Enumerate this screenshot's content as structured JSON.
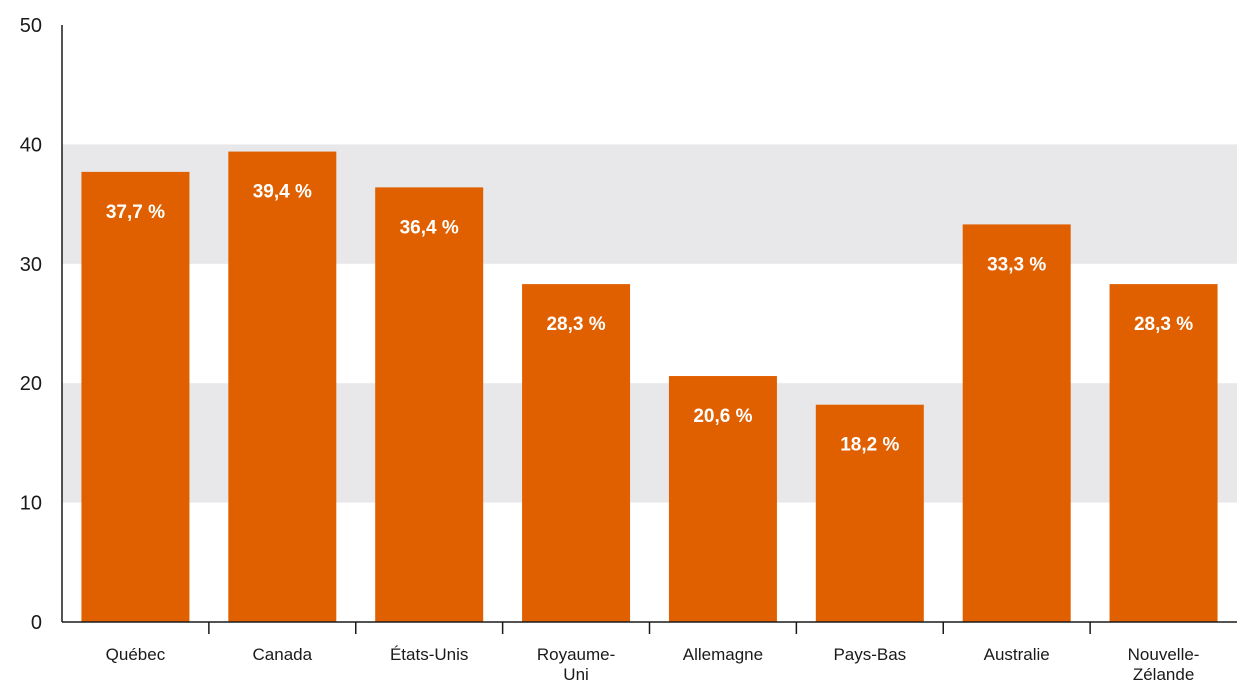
{
  "chart_data": {
    "type": "bar",
    "categories": [
      [
        "Québec"
      ],
      [
        "Canada"
      ],
      [
        "États-Unis"
      ],
      [
        "Royaume-",
        "Uni"
      ],
      [
        "Allemagne"
      ],
      [
        "Pays-Bas"
      ],
      [
        "Australie"
      ],
      [
        "Nouvelle-",
        "Zélande"
      ]
    ],
    "values": [
      37.7,
      39.4,
      36.4,
      28.3,
      20.6,
      18.2,
      33.3,
      28.3
    ],
    "data_labels": [
      "37,7 %",
      "39,4 %",
      "36,4 %",
      "28,3 %",
      "20,6 %",
      "18,2 %",
      "33,3 %",
      "28,3 %"
    ],
    "y_ticks": [
      0,
      10,
      20,
      30,
      40,
      50
    ],
    "ylim": [
      0,
      50
    ],
    "title": "",
    "xlabel": "",
    "ylabel": "",
    "grid": "alternating horizontal bands",
    "colors": {
      "bar": "#e06000",
      "band": "#e8e8ea",
      "axis": "#1a1a1a",
      "data_label": "#ffffff"
    }
  }
}
